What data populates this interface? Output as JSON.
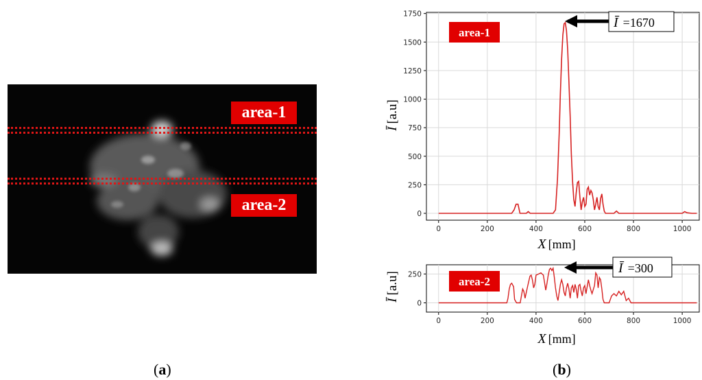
{
  "panel_a": {
    "caption_open": "(",
    "caption_letter": "a",
    "caption_close": ")",
    "label_top": "area-1",
    "label_bottom": "area-2"
  },
  "panel_b": {
    "caption_open": "(",
    "caption_letter": "b",
    "caption_close": ")"
  },
  "chart_data": [
    {
      "type": "line",
      "tag": "area-1",
      "xlabel_var": "X",
      "xlabel_unit": "[mm]",
      "ylabel_var": "Ī",
      "ylabel_unit": "[a.u]",
      "xlim": [
        -50,
        1070
      ],
      "ylim": [
        -60,
        1760
      ],
      "xticks": [
        0,
        200,
        400,
        600,
        800,
        1000
      ],
      "yticks": [
        0,
        250,
        500,
        750,
        1000,
        1250,
        1500,
        1750
      ],
      "grid": true,
      "color": "#d62020",
      "annotation": {
        "var": "Ī",
        "text": "=1670",
        "x": 520,
        "y": 1670
      },
      "x": [
        0,
        300,
        310,
        318,
        326,
        334,
        360,
        368,
        376,
        470,
        480,
        488,
        495,
        500,
        505,
        510,
        515,
        520,
        525,
        530,
        535,
        540,
        545,
        550,
        555,
        560,
        565,
        570,
        575,
        580,
        585,
        590,
        595,
        600,
        605,
        610,
        615,
        620,
        625,
        630,
        635,
        640,
        645,
        650,
        655,
        660,
        665,
        670,
        675,
        680,
        685,
        690,
        700,
        720,
        730,
        740,
        1000,
        1010,
        1020,
        1040,
        1060
      ],
      "y": [
        0,
        0,
        30,
        80,
        80,
        0,
        0,
        15,
        0,
        0,
        30,
        300,
        700,
        1050,
        1350,
        1560,
        1660,
        1670,
        1600,
        1430,
        1150,
        850,
        520,
        280,
        120,
        60,
        180,
        270,
        280,
        140,
        30,
        100,
        140,
        60,
        80,
        210,
        230,
        160,
        200,
        180,
        120,
        30,
        80,
        140,
        60,
        30,
        130,
        170,
        80,
        20,
        0,
        0,
        0,
        0,
        20,
        0,
        0,
        15,
        5,
        0,
        0
      ]
    },
    {
      "type": "line",
      "tag": "area-2",
      "xlabel_var": "X",
      "xlabel_unit": "[mm]",
      "ylabel_var": "Ī",
      "ylabel_unit": "[a.u]",
      "xlim": [
        -50,
        1070
      ],
      "ylim": [
        -80,
        330
      ],
      "xticks": [
        0,
        200,
        400,
        600,
        800,
        1000
      ],
      "yticks": [
        0,
        250
      ],
      "grid": true,
      "color": "#d62020",
      "annotation": {
        "var": "Ī",
        "text": "=300",
        "x": 470,
        "y": 300
      },
      "x": [
        0,
        280,
        285,
        290,
        295,
        300,
        308,
        312,
        320,
        335,
        340,
        345,
        350,
        355,
        365,
        375,
        380,
        385,
        390,
        395,
        400,
        410,
        420,
        430,
        440,
        445,
        450,
        455,
        460,
        465,
        470,
        475,
        480,
        485,
        490,
        500,
        505,
        510,
        515,
        520,
        525,
        530,
        535,
        540,
        545,
        550,
        555,
        560,
        565,
        570,
        575,
        580,
        585,
        590,
        595,
        600,
        605,
        610,
        615,
        620,
        625,
        630,
        640,
        645,
        650,
        655,
        660,
        665,
        670,
        675,
        680,
        690,
        700,
        710,
        720,
        730,
        740,
        750,
        760,
        770,
        780,
        790,
        800,
        1060
      ],
      "y": [
        0,
        0,
        40,
        120,
        160,
        170,
        140,
        30,
        0,
        0,
        60,
        120,
        100,
        40,
        140,
        230,
        240,
        200,
        130,
        160,
        240,
        250,
        260,
        240,
        110,
        170,
        240,
        290,
        300,
        280,
        300,
        220,
        130,
        60,
        20,
        160,
        200,
        160,
        90,
        60,
        130,
        170,
        120,
        40,
        130,
        150,
        90,
        160,
        120,
        40,
        150,
        160,
        100,
        60,
        130,
        150,
        80,
        140,
        200,
        150,
        110,
        80,
        150,
        260,
        240,
        130,
        220,
        200,
        120,
        30,
        0,
        0,
        0,
        60,
        80,
        60,
        100,
        70,
        100,
        20,
        40,
        0,
        0,
        0
      ]
    }
  ],
  "colors": {
    "tag_bg": "#e10000",
    "line": "#d62020",
    "grid": "#d9d9d9"
  }
}
